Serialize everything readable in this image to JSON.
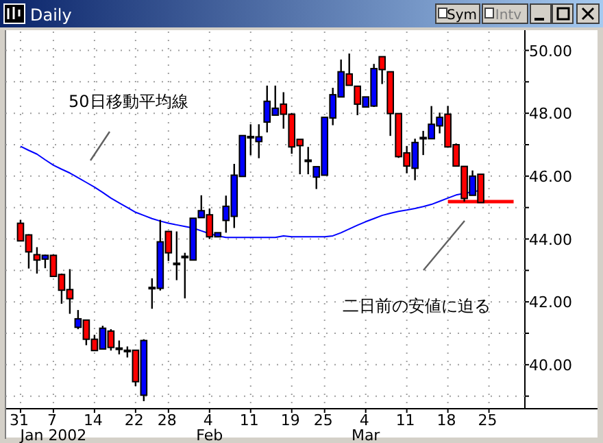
{
  "chart_data": {
    "type": "candlestick",
    "title": "Daily",
    "categories": [
      "31",
      null,
      null,
      null,
      "7",
      null,
      null,
      null,
      null,
      "14",
      null,
      null,
      null,
      null,
      "22",
      null,
      null,
      null,
      "28",
      null,
      null,
      null,
      null,
      "4",
      null,
      null,
      null,
      null,
      "11",
      null,
      null,
      null,
      null,
      "19",
      null,
      null,
      null,
      "25",
      null,
      null,
      null,
      null,
      "4",
      null,
      null,
      null,
      null,
      "11",
      null,
      null,
      null,
      null,
      "18",
      null,
      null,
      null,
      null,
      "25",
      null,
      null,
      null
    ],
    "ohlc": [
      [
        44.5,
        44.61,
        43.94,
        43.94
      ],
      [
        44.13,
        44.15,
        43.06,
        43.59
      ],
      [
        43.5,
        43.74,
        42.9,
        43.33
      ],
      [
        43.36,
        43.5,
        43.07,
        43.48
      ],
      [
        43.48,
        43.5,
        42.81,
        42.81
      ],
      [
        42.87,
        42.9,
        41.94,
        42.37
      ],
      [
        42.39,
        43.04,
        41.62,
        42.1
      ],
      [
        41.19,
        41.74,
        41.13,
        41.46
      ],
      [
        41.42,
        41.42,
        40.62,
        40.81
      ],
      [
        40.81,
        40.95,
        40.45,
        40.45
      ],
      [
        40.5,
        41.24,
        40.5,
        41.16
      ],
      [
        41.07,
        41.13,
        40.45,
        40.55
      ],
      [
        40.53,
        40.77,
        40.33,
        40.52
      ],
      [
        40.46,
        40.58,
        40.23,
        40.45
      ],
      [
        40.46,
        40.46,
        39.32,
        39.46
      ],
      [
        39.03,
        40.81,
        38.84,
        40.77
      ],
      [
        42.45,
        42.75,
        41.78,
        42.46
      ],
      [
        42.43,
        44.61,
        42.36,
        43.91
      ],
      [
        44.24,
        44.24,
        43.3,
        43.56
      ],
      [
        43.23,
        44.24,
        42.69,
        43.22
      ],
      [
        43.45,
        43.56,
        42.11,
        43.44
      ],
      [
        43.33,
        44.66,
        43.33,
        44.66
      ],
      [
        44.68,
        45.39,
        44.68,
        44.9
      ],
      [
        44.77,
        44.97,
        44.0,
        44.07
      ],
      [
        44.07,
        44.2,
        44.07,
        44.2
      ],
      [
        44.59,
        45.38,
        44.2,
        45.04
      ],
      [
        44.72,
        46.39,
        44.35,
        46.03
      ],
      [
        45.99,
        47.29,
        45.99,
        47.29
      ],
      [
        47.25,
        47.65,
        46.67,
        47.26
      ],
      [
        47.1,
        47.65,
        46.57,
        47.25
      ],
      [
        47.72,
        48.88,
        47.39,
        48.38
      ],
      [
        47.94,
        48.88,
        47.94,
        48.16
      ],
      [
        48.29,
        48.67,
        47.51,
        47.97
      ],
      [
        47.97,
        48.01,
        46.71,
        46.93
      ],
      [
        47.17,
        47.17,
        46.06,
        46.97
      ],
      [
        46.51,
        46.93,
        46.06,
        46.5
      ],
      [
        45.97,
        46.3,
        45.59,
        46.3
      ],
      [
        46.03,
        47.87,
        46.03,
        47.87
      ],
      [
        47.85,
        48.81,
        47.62,
        48.59
      ],
      [
        48.52,
        49.71,
        48.52,
        49.32
      ],
      [
        49.25,
        49.9,
        48.89,
        48.89
      ],
      [
        48.86,
        48.86,
        47.94,
        48.29
      ],
      [
        48.2,
        48.52,
        48.2,
        48.52
      ],
      [
        48.23,
        49.57,
        48.2,
        49.42
      ],
      [
        49.8,
        49.8,
        48.93,
        49.39
      ],
      [
        49.32,
        49.32,
        47.28,
        47.99
      ],
      [
        47.99,
        47.99,
        46.58,
        46.62
      ],
      [
        46.74,
        46.96,
        46.09,
        46.32
      ],
      [
        46.25,
        47.19,
        45.87,
        47.07
      ],
      [
        47.22,
        47.44,
        46.67,
        47.23
      ],
      [
        47.19,
        48.23,
        47.19,
        47.65
      ],
      [
        47.6,
        48.02,
        47.36,
        47.87
      ],
      [
        47.97,
        48.23,
        46.93,
        46.93
      ],
      [
        47.0,
        47.04,
        46.32,
        46.32
      ],
      [
        46.31,
        46.31,
        45.19,
        45.29
      ],
      [
        45.39,
        46.18,
        45.39,
        46.0
      ],
      [
        46.06,
        46.06,
        45.16,
        45.16
      ],
      null,
      null,
      null,
      null
    ],
    "colors": [
      "#ff0000",
      "#ff0000",
      "#ff0000",
      "#0000ff",
      "#ff0000",
      "#ff0000",
      "#ff0000",
      "#0000ff",
      "#ff0000",
      "#ff0000",
      "#0000ff",
      "#ff0000",
      "#000000",
      "#000000",
      "#ff0000",
      "#0000ff",
      "#000000",
      "#0000ff",
      "#ff0000",
      "#000000",
      "#000000",
      "#0000ff",
      "#0000ff",
      "#ff0000",
      "#0000ff",
      "#0000ff",
      "#0000ff",
      "#0000ff",
      "#000000",
      "#0000ff",
      "#0000ff",
      "#0000ff",
      "#ff0000",
      "#ff0000",
      "#ff0000",
      "#000000",
      "#0000ff",
      "#0000ff",
      "#0000ff",
      "#0000ff",
      "#ff0000",
      "#ff0000",
      "#0000ff",
      "#0000ff",
      "#ff0000",
      "#ff0000",
      "#ff0000",
      "#ff0000",
      "#0000ff",
      "#000000",
      "#0000ff",
      "#0000ff",
      "#ff0000",
      "#ff0000",
      "#ff0000",
      "#0000ff",
      "#ff0000",
      null,
      null,
      null,
      null
    ],
    "series": [
      {
        "type": "line",
        "color": "#0000ff",
        "values": [
          46.95,
          46.82,
          46.7,
          46.52,
          46.35,
          46.22,
          46.1,
          45.95,
          45.8,
          45.65,
          45.48,
          45.3,
          45.15,
          45.0,
          44.85,
          44.75,
          44.65,
          44.57,
          44.5,
          44.45,
          44.4,
          44.35,
          44.26,
          44.17,
          44.1,
          44.05,
          44.05,
          44.05,
          44.05,
          44.05,
          44.05,
          44.05,
          44.1,
          44.07,
          44.07,
          44.07,
          44.07,
          44.07,
          44.1,
          44.2,
          44.32,
          44.44,
          44.55,
          44.65,
          44.75,
          44.82,
          44.88,
          44.92,
          44.97,
          45.03,
          45.1,
          45.2,
          45.3,
          45.4,
          45.45,
          45.5,
          45.55,
          null,
          null,
          null,
          null
        ]
      },
      {
        "type": "line",
        "color": "#ff0000",
        "values": [
          null,
          null,
          null,
          null,
          null,
          null,
          null,
          null,
          null,
          null,
          null,
          null,
          null,
          null,
          null,
          null,
          null,
          null,
          null,
          null,
          null,
          null,
          null,
          null,
          null,
          null,
          null,
          null,
          null,
          null,
          null,
          null,
          null,
          null,
          null,
          null,
          null,
          null,
          null,
          null,
          null,
          null,
          null,
          null,
          null,
          null,
          null,
          null,
          null,
          null,
          null,
          null,
          45.19,
          45.19,
          45.19,
          45.19,
          45.19,
          45.19,
          45.19,
          45.19,
          45.19
        ]
      }
    ],
    "ylim": [
      38.6,
      50.6
    ],
    "yticks": [
      {
        "value": 39,
        "label": null
      },
      {
        "value": 40,
        "label": "40.00"
      },
      {
        "value": 41,
        "label": null
      },
      {
        "value": 42,
        "label": "42.00"
      },
      {
        "value": 43,
        "label": null
      },
      {
        "value": 44,
        "label": "44.00"
      },
      {
        "value": 45,
        "label": null
      },
      {
        "value": 46,
        "label": "46.00"
      },
      {
        "value": 47,
        "label": null
      },
      {
        "value": 48,
        "label": "48.00"
      },
      {
        "value": 49,
        "label": null
      },
      {
        "value": 50,
        "label": "50.00"
      }
    ],
    "grid": true,
    "annotations": [
      "50日移動平均線",
      "二日前の安値に迫る",
      "Jan 2002",
      "Feb",
      "Mar",
      "Sym",
      "Intv"
    ]
  }
}
